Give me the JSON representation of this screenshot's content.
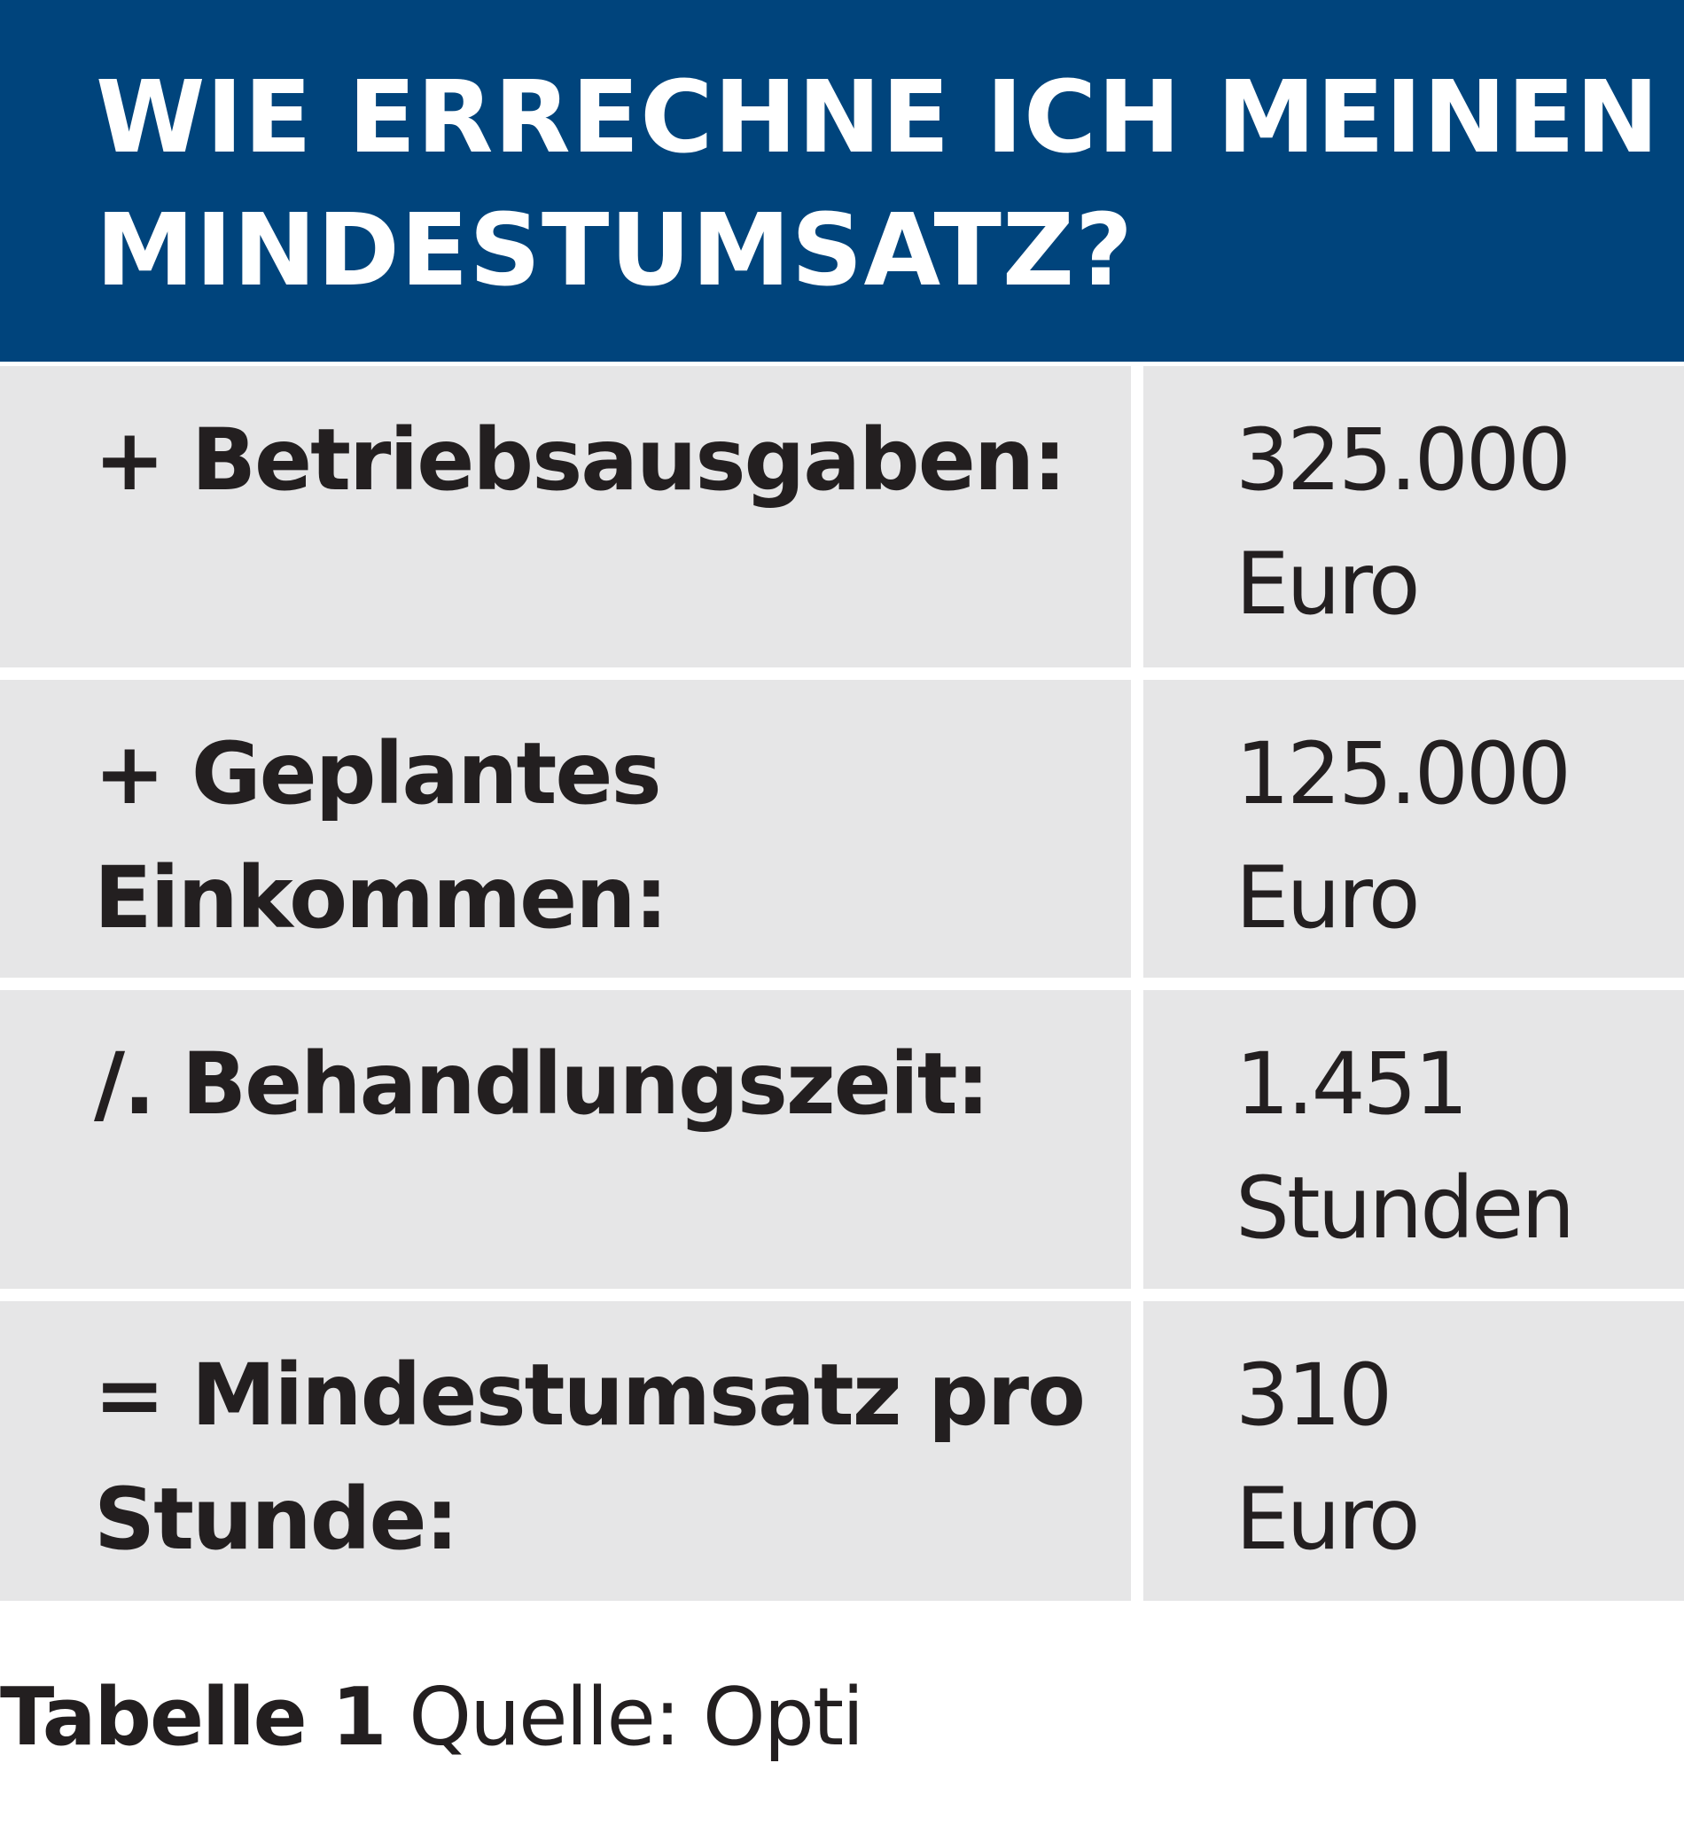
{
  "header": {
    "title_line1": "WIE ERRECHNE ICH MEINEN",
    "title_line2": "MINDESTUMSATZ?",
    "background_color": "#00447c"
  },
  "table": {
    "rows": [
      {
        "label_lines": [
          "+ Betriebsausgaben:"
        ],
        "value_lines": [
          "325.000",
          "Euro"
        ]
      },
      {
        "label_lines": [
          "+ Geplantes",
          "Einkommen:"
        ],
        "value_lines": [
          "125.000",
          "Euro"
        ]
      },
      {
        "label_lines": [
          "/. Behandlungszeit:"
        ],
        "value_lines": [
          "1.451",
          "Stunden"
        ]
      },
      {
        "label_lines": [
          "= Mindestumsatz pro",
          "Stunde:"
        ],
        "value_lines": [
          "310",
          "Euro"
        ]
      }
    ],
    "cell_color": "#e6e6e7"
  },
  "caption": {
    "bold": "Tabelle 1",
    "normal": "Quelle: Opti"
  }
}
